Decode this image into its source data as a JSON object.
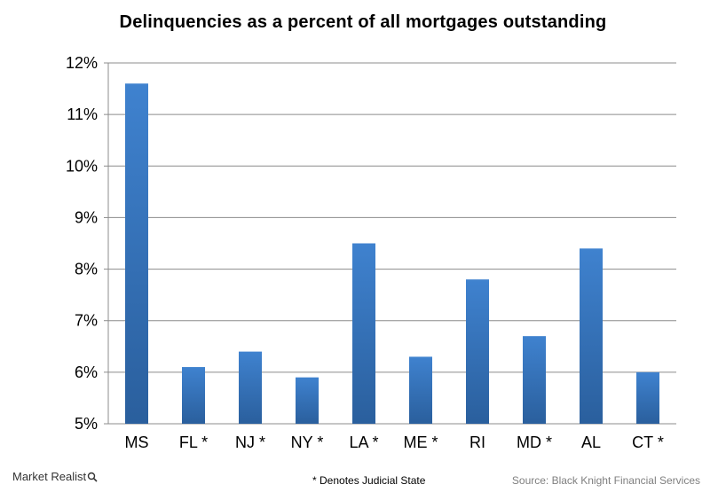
{
  "chart_data": {
    "type": "bar",
    "title": "Delinquencies  as a percent  of all mortgages  outstanding",
    "categories": [
      "MS",
      "FL *",
      "NJ *",
      "NY *",
      "LA *",
      "ME *",
      "RI",
      "MD *",
      "AL",
      "CT *"
    ],
    "values": [
      11.6,
      6.1,
      6.4,
      5.9,
      8.5,
      6.3,
      7.8,
      6.7,
      8.4,
      6.0
    ],
    "ylim": [
      5,
      12
    ],
    "yticks": [
      5,
      6,
      7,
      8,
      9,
      10,
      11,
      12
    ],
    "ytick_labels": [
      "5%",
      "6%",
      "7%",
      "8%",
      "9%",
      "10%",
      "11%",
      "12%"
    ],
    "xlabel": "",
    "ylabel": "",
    "grid": true,
    "bar_color_top": "#3f82cf",
    "bar_color_bottom": "#2a5f9d"
  },
  "footer": {
    "brand": "Market Realist",
    "footnote": "* Denotes Judicial State",
    "source": "Source: Black Knight Financial Services"
  }
}
